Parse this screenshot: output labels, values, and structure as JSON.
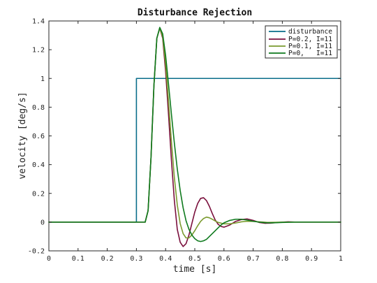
{
  "chart_data": {
    "type": "line",
    "title": "Disturbance Rejection",
    "xlabel": "time [s]",
    "ylabel": "velocity [deg/s]",
    "xlim": [
      0,
      1
    ],
    "ylim": [
      -0.2,
      1.4
    ],
    "xticks": [
      0,
      0.1,
      0.2,
      0.3,
      0.4,
      0.5,
      0.6,
      0.7,
      0.8,
      0.9,
      1
    ],
    "xtick_labels": [
      "0",
      "0.1",
      "0.2",
      "0.3",
      "0.4",
      "0.5",
      "0.6",
      "0.7",
      "0.8",
      "0.9",
      "1"
    ],
    "yticks": [
      -0.2,
      0,
      0.2,
      0.4,
      0.6,
      0.8,
      1,
      1.2,
      1.4
    ],
    "ytick_labels": [
      "-0.2",
      "0",
      "0.2",
      "0.4",
      "0.6",
      "0.8",
      "1",
      "1.2",
      "1.4"
    ],
    "grid": true,
    "legend_position": "top-right",
    "series": [
      {
        "name": "disturbance",
        "color": "#0a6e8a",
        "x": [
          0,
          0.3,
          0.3,
          1
        ],
        "y": [
          0,
          0,
          1,
          1
        ]
      },
      {
        "name": "P=0.2, I=11",
        "color": "#7a0f3c",
        "x": [
          0,
          0.33,
          0.34,
          0.35,
          0.36,
          0.37,
          0.38,
          0.39,
          0.4,
          0.41,
          0.42,
          0.43,
          0.44,
          0.45,
          0.46,
          0.47,
          0.48,
          0.49,
          0.5,
          0.51,
          0.52,
          0.53,
          0.54,
          0.55,
          0.56,
          0.57,
          0.58,
          0.59,
          0.6,
          0.62,
          0.64,
          0.66,
          0.68,
          0.7,
          0.72,
          0.74,
          0.76,
          0.78,
          0.8,
          0.82,
          0.85,
          0.9,
          1
        ],
        "y": [
          0,
          0,
          0.08,
          0.45,
          0.95,
          1.28,
          1.35,
          1.28,
          1.05,
          0.75,
          0.43,
          0.15,
          -0.05,
          -0.14,
          -0.17,
          -0.15,
          -0.09,
          -0.01,
          0.07,
          0.13,
          0.165,
          0.17,
          0.15,
          0.11,
          0.06,
          0.015,
          -0.015,
          -0.03,
          -0.035,
          -0.02,
          0.005,
          0.018,
          0.022,
          0.012,
          -0.002,
          -0.008,
          -0.007,
          -0.003,
          0,
          0.002,
          0,
          0,
          0
        ]
      },
      {
        "name": "P=0.1, I=11",
        "color": "#7a9a2e",
        "x": [
          0,
          0.33,
          0.34,
          0.35,
          0.36,
          0.37,
          0.38,
          0.39,
          0.4,
          0.41,
          0.42,
          0.43,
          0.44,
          0.45,
          0.46,
          0.47,
          0.48,
          0.49,
          0.5,
          0.51,
          0.52,
          0.53,
          0.54,
          0.55,
          0.56,
          0.57,
          0.58,
          0.6,
          0.62,
          0.64,
          0.66,
          0.68,
          0.7,
          0.72,
          0.75,
          0.8,
          0.85,
          0.9,
          1
        ],
        "y": [
          0,
          0,
          0.08,
          0.45,
          0.95,
          1.28,
          1.35,
          1.29,
          1.1,
          0.84,
          0.56,
          0.31,
          0.12,
          -0.01,
          -0.08,
          -0.11,
          -0.11,
          -0.09,
          -0.06,
          -0.025,
          0.005,
          0.025,
          0.035,
          0.03,
          0.02,
          0.008,
          -0.002,
          -0.012,
          -0.012,
          -0.006,
          0.002,
          0.006,
          0.005,
          0.002,
          -0.002,
          0,
          0,
          0,
          0
        ]
      },
      {
        "name": "P=0,   I=11",
        "color": "#0f7a1e",
        "x": [
          0,
          0.33,
          0.34,
          0.35,
          0.36,
          0.37,
          0.38,
          0.39,
          0.4,
          0.41,
          0.42,
          0.43,
          0.44,
          0.45,
          0.46,
          0.47,
          0.48,
          0.49,
          0.5,
          0.51,
          0.52,
          0.53,
          0.54,
          0.55,
          0.56,
          0.57,
          0.58,
          0.59,
          0.6,
          0.62,
          0.64,
          0.66,
          0.68,
          0.7,
          0.72,
          0.74,
          0.76,
          0.78,
          0.8,
          0.85,
          0.9,
          1
        ],
        "y": [
          0,
          0,
          0.08,
          0.45,
          0.95,
          1.28,
          1.355,
          1.31,
          1.16,
          0.96,
          0.75,
          0.55,
          0.37,
          0.22,
          0.1,
          0.01,
          -0.05,
          -0.09,
          -0.115,
          -0.13,
          -0.135,
          -0.13,
          -0.12,
          -0.1,
          -0.08,
          -0.06,
          -0.04,
          -0.02,
          -0.005,
          0.012,
          0.02,
          0.02,
          0.014,
          0.006,
          0,
          -0.004,
          -0.005,
          -0.004,
          -0.002,
          0,
          0,
          0
        ]
      }
    ]
  }
}
